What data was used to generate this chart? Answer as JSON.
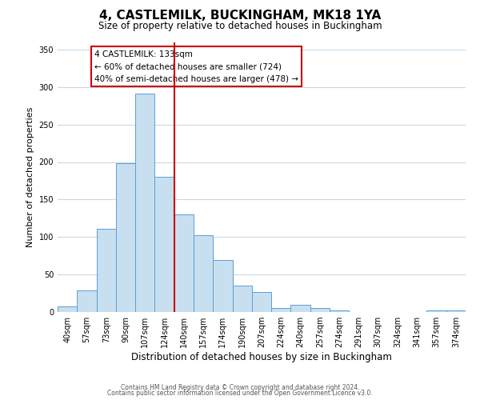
{
  "title": "4, CASTLEMILK, BUCKINGHAM, MK18 1YA",
  "subtitle": "Size of property relative to detached houses in Buckingham",
  "xlabel": "Distribution of detached houses by size in Buckingham",
  "ylabel": "Number of detached properties",
  "bar_labels": [
    "40sqm",
    "57sqm",
    "73sqm",
    "90sqm",
    "107sqm",
    "124sqm",
    "140sqm",
    "157sqm",
    "174sqm",
    "190sqm",
    "207sqm",
    "224sqm",
    "240sqm",
    "257sqm",
    "274sqm",
    "291sqm",
    "307sqm",
    "324sqm",
    "341sqm",
    "357sqm",
    "374sqm"
  ],
  "bar_heights": [
    7,
    29,
    111,
    198,
    291,
    180,
    130,
    102,
    69,
    35,
    27,
    5,
    10,
    5,
    2,
    0,
    0,
    0,
    0,
    2,
    2
  ],
  "bar_color": "#c8dff0",
  "bar_edge_color": "#5a9fd4",
  "vline_x": 5.5,
  "vline_color": "#cc0000",
  "ylim": [
    0,
    360
  ],
  "yticks": [
    0,
    50,
    100,
    150,
    200,
    250,
    300,
    350
  ],
  "annotation_title": "4 CASTLEMILK: 133sqm",
  "annotation_line1": "← 60% of detached houses are smaller (724)",
  "annotation_line2": "40% of semi-detached houses are larger (478) →",
  "annotation_box_color": "#ffffff",
  "annotation_box_edge": "#cc0000",
  "footer_line1": "Contains HM Land Registry data © Crown copyright and database right 2024.",
  "footer_line2": "Contains public sector information licensed under the Open Government Licence v3.0.",
  "background_color": "#ffffff",
  "grid_color": "#c8d8e8",
  "title_fontsize": 11,
  "subtitle_fontsize": 8.5,
  "ylabel_fontsize": 8,
  "xlabel_fontsize": 8.5,
  "tick_fontsize": 7,
  "annotation_fontsize": 7.5,
  "footer_fontsize": 5.5
}
